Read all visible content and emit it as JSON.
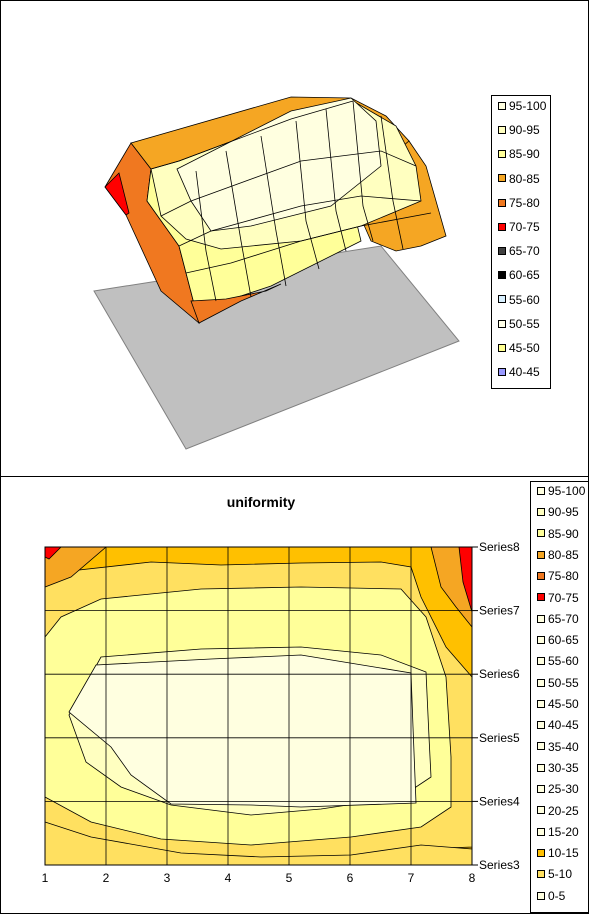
{
  "chart_data": [
    {
      "type": "surface-3d",
      "title": "",
      "legend": {
        "placement": "right",
        "entries": [
          "95-100",
          "90-95",
          "85-90",
          "80-85",
          "75-80",
          "70-75",
          "65-70",
          "60-65",
          "55-60",
          "50-55",
          "45-50",
          "40-45"
        ],
        "colors": [
          "#FFFFE0",
          "#FFFFC0",
          "#FFFF99",
          "#F5A623",
          "#F07820",
          "#FF0000",
          "#404040",
          "#000000",
          "#D8F0FF",
          "#FFFFE8",
          "#FFFF90",
          "#9999FF"
        ]
      }
    },
    {
      "type": "contour",
      "title": "uniformity",
      "x": [
        1,
        2,
        3,
        4,
        5,
        6,
        7,
        8
      ],
      "series": [
        "Series3",
        "Series4",
        "Series5",
        "Series6",
        "Series7",
        "Series8"
      ],
      "legend": {
        "placement": "right",
        "entries": [
          "95-100",
          "90-95",
          "85-90",
          "80-85",
          "75-80",
          "70-75",
          "65-70",
          "60-65",
          "55-60",
          "50-55",
          "45-50",
          "40-45",
          "35-40",
          "30-35",
          "25-30",
          "20-25",
          "15-20",
          "10-15",
          "5-10",
          "0-5"
        ],
        "colors": [
          "#FFFFE0",
          "#FFFFC0",
          "#FFFF99",
          "#F5A623",
          "#F07820",
          "#FF0000",
          "#FFFFE0",
          "#FFFFE0",
          "#FFFFE0",
          "#FFFFE0",
          "#FFFFE0",
          "#FFFFE0",
          "#FFFFE0",
          "#FFFFE0",
          "#FFFFE0",
          "#FFFFE0",
          "#FFFFE0",
          "#FFC000",
          "#FFE060",
          "#FFFFE0"
        ]
      }
    }
  ]
}
